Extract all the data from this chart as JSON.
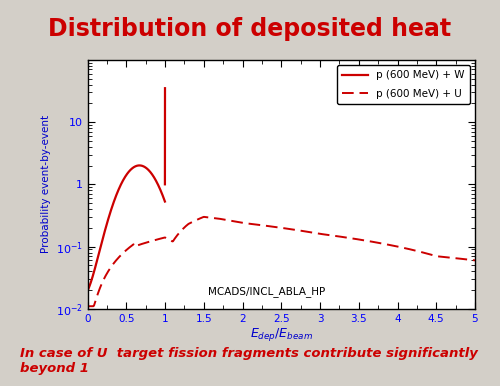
{
  "title": "Distribution of deposited heat",
  "title_color": "#cc0000",
  "title_fontsize": 17,
  "ylabel": "Probability event-by-event",
  "ylabel_color": "#0000cc",
  "xlabel_color": "#0000cc",
  "xlim": [
    0,
    5
  ],
  "ylim": [
    0.01,
    100
  ],
  "annotation": "MCADS/INCL_ABLA_HP",
  "legend_label_W": "p (600 MeV) + W",
  "legend_label_U": "p (600 MeV) + U",
  "line_color": "#cc0000",
  "background_color": "#d3cfc8",
  "plot_bg_color": "#ffffff",
  "footer_text": "In case of U  target fission fragments contribute significantly\nbeyond 1",
  "footer_color": "#cc0000",
  "footer_fontsize": 9.5,
  "footer_bold": true
}
